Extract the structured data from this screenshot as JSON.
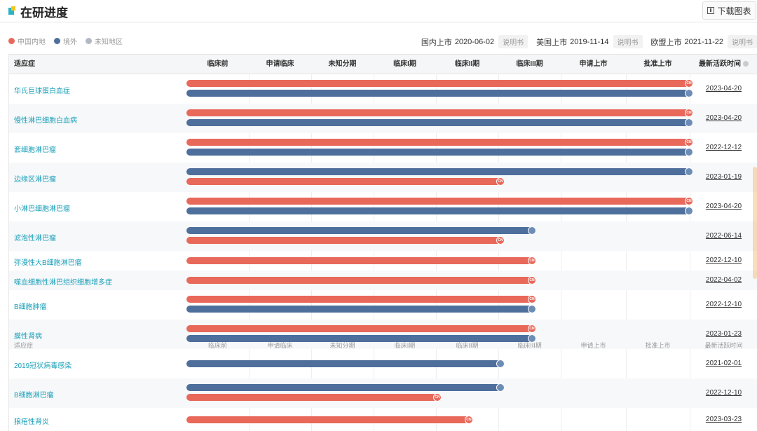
{
  "page": {
    "title": "在研进度",
    "download_label": "下载图表"
  },
  "legend": [
    {
      "label": "中国内地",
      "color": "#e8685a"
    },
    {
      "label": "境外",
      "color": "#4e6f9c"
    },
    {
      "label": "未知地区",
      "color": "#b3b8c2"
    }
  ],
  "approvals": [
    {
      "label": "国内上市",
      "date": "2020-06-02",
      "doc": "说明书"
    },
    {
      "label": "美国上市",
      "date": "2019-11-14",
      "doc": "说明书"
    },
    {
      "label": "欧盟上市",
      "date": "2021-11-22",
      "doc": "说明书"
    }
  ],
  "table": {
    "headers": [
      "适应症",
      "临床前",
      "申请临床",
      "未知分期",
      "临床I期",
      "临床II期",
      "临床III期",
      "申请上市",
      "批准上市",
      "最新活跃时间"
    ],
    "rows": [
      {
        "indication": "华氏巨球蛋白血症",
        "date": "2023-04-20",
        "bars": [
          {
            "region": "cn",
            "progress": 1.0,
            "mark": "CN"
          },
          {
            "region": "global",
            "progress": 1.0,
            "mark": ""
          }
        ]
      },
      {
        "indication": "慢性淋巴细胞白血病",
        "date": "2023-04-20",
        "bars": [
          {
            "region": "cn",
            "progress": 1.0,
            "mark": "CN"
          },
          {
            "region": "global",
            "progress": 1.0,
            "mark": ""
          }
        ]
      },
      {
        "indication": "套细胞淋巴瘤",
        "date": "2022-12-12",
        "bars": [
          {
            "region": "cn",
            "progress": 1.0,
            "mark": "CN"
          },
          {
            "region": "global",
            "progress": 1.0,
            "mark": ""
          }
        ]
      },
      {
        "indication": "边缘区淋巴瘤",
        "date": "2023-01-19",
        "bars": [
          {
            "region": "global",
            "progress": 1.0,
            "mark": ""
          },
          {
            "region": "cn",
            "progress": 0.625,
            "mark": "CN"
          }
        ]
      },
      {
        "indication": "小淋巴细胞淋巴瘤",
        "date": "2023-04-20",
        "bars": [
          {
            "region": "cn",
            "progress": 1.0,
            "mark": "CN"
          },
          {
            "region": "global",
            "progress": 1.0,
            "mark": ""
          }
        ]
      },
      {
        "indication": "滤泡性淋巴瘤",
        "date": "2022-06-14",
        "bars": [
          {
            "region": "global",
            "progress": 0.6875,
            "mark": ""
          },
          {
            "region": "cn",
            "progress": 0.625,
            "mark": "CN"
          }
        ]
      },
      {
        "indication": "弥漫性大B细胞淋巴瘤",
        "date": "2022-12-10",
        "bars": [
          {
            "region": "cn",
            "progress": 0.6875,
            "mark": "CN"
          }
        ]
      },
      {
        "indication": "噬血细胞性淋巴组织细胞增多症",
        "date": "2022-04-02",
        "bars": [
          {
            "region": "cn",
            "progress": 0.6875,
            "mark": "CN"
          }
        ]
      },
      {
        "indication": "B细胞肿瘤",
        "date": "2022-12-10",
        "bars": [
          {
            "region": "cn",
            "progress": 0.6875,
            "mark": "CN"
          },
          {
            "region": "global",
            "progress": 0.6875,
            "mark": ""
          }
        ]
      },
      {
        "indication": "膜性肾病",
        "date": "2023-01-23",
        "bars": [
          {
            "region": "cn",
            "progress": 0.6875,
            "mark": "CN"
          },
          {
            "region": "global",
            "progress": 0.6875,
            "mark": ""
          }
        ]
      },
      {
        "indication": "2019冠状病毒感染",
        "date": "2021-02-01",
        "bars": [
          {
            "region": "global",
            "progress": 0.625,
            "mark": ""
          }
        ]
      },
      {
        "indication": "B细胞淋巴瘤",
        "date": "2022-12-10",
        "bars": [
          {
            "region": "global",
            "progress": 0.625,
            "mark": ""
          },
          {
            "region": "cn",
            "progress": 0.5,
            "mark": "CN"
          }
        ]
      },
      {
        "indication": "狼疮性肾炎",
        "date": "2023-03-23",
        "bars": [
          {
            "region": "cn",
            "progress": 0.5625,
            "mark": "CN"
          }
        ]
      }
    ]
  }
}
